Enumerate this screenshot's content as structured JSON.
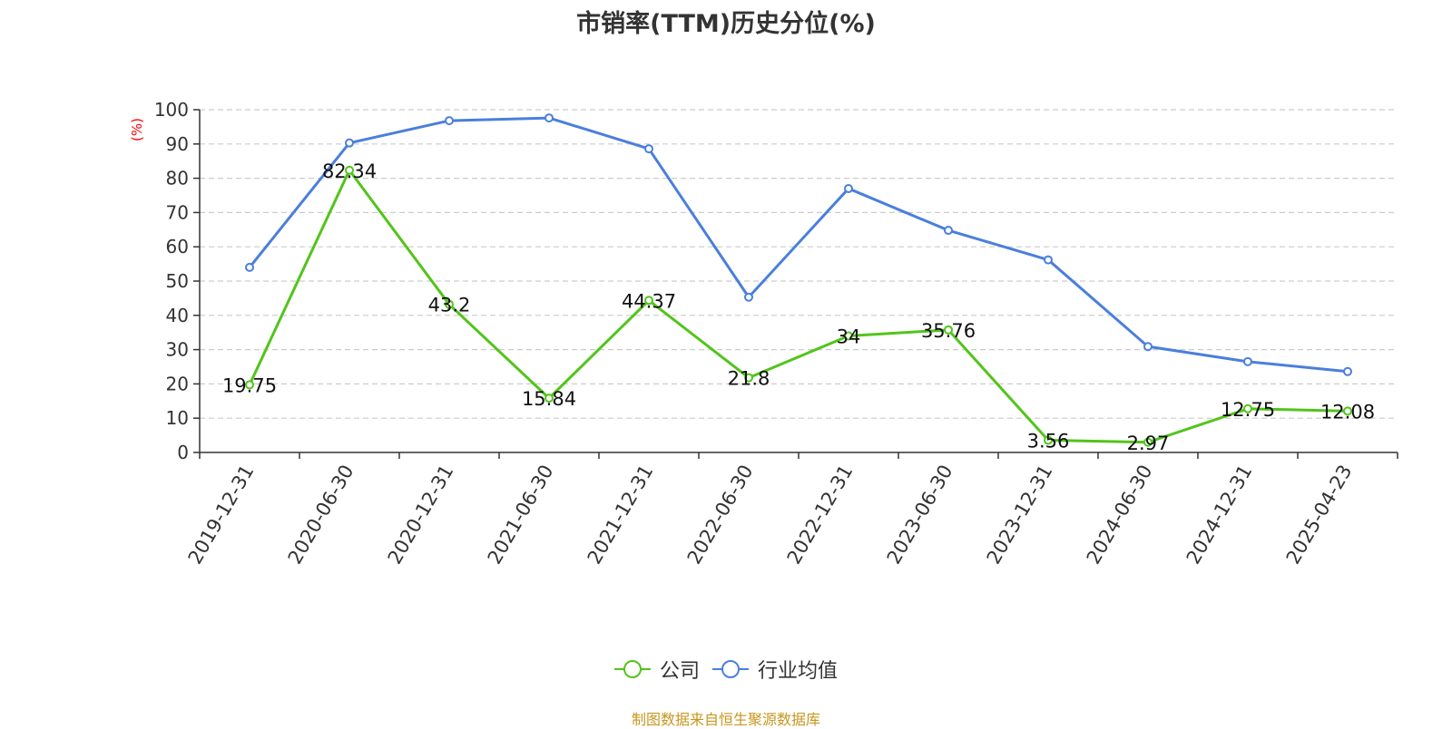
{
  "chart_data": {
    "type": "line",
    "title": "市销率(TTM)历史分位(%)",
    "ylabel": "(%)",
    "ylim": [
      0,
      100
    ],
    "yticks": [
      0,
      10,
      20,
      30,
      40,
      50,
      60,
      70,
      80,
      90,
      100
    ],
    "categories": [
      "2019-12-31",
      "2020-06-30",
      "2020-12-31",
      "2021-06-30",
      "2021-12-31",
      "2022-06-30",
      "2022-12-31",
      "2023-06-30",
      "2023-12-31",
      "2024-06-30",
      "2024-12-31",
      "2025-04-23"
    ],
    "series": [
      {
        "name": "公司",
        "color": "#52c41a",
        "values": [
          19.75,
          82.34,
          43.2,
          15.84,
          44.37,
          21.8,
          34,
          35.76,
          3.56,
          2.97,
          12.75,
          12.08
        ],
        "labels": [
          "19.75",
          "82.34",
          "43.2",
          "15.84",
          "44.37",
          "21.8",
          "34",
          "35.76",
          "3.56",
          "2.97",
          "12.75",
          "12.08"
        ]
      },
      {
        "name": "行业均值",
        "color": "#4a7fdc",
        "values": [
          54,
          90.3,
          96.8,
          97.6,
          88.6,
          45.3,
          77,
          64.8,
          56.2,
          30.9,
          26.5,
          23.6
        ]
      }
    ],
    "grid": true,
    "legend_position": "bottom-center"
  },
  "footer": "制图数据来自恒生聚源数据库"
}
